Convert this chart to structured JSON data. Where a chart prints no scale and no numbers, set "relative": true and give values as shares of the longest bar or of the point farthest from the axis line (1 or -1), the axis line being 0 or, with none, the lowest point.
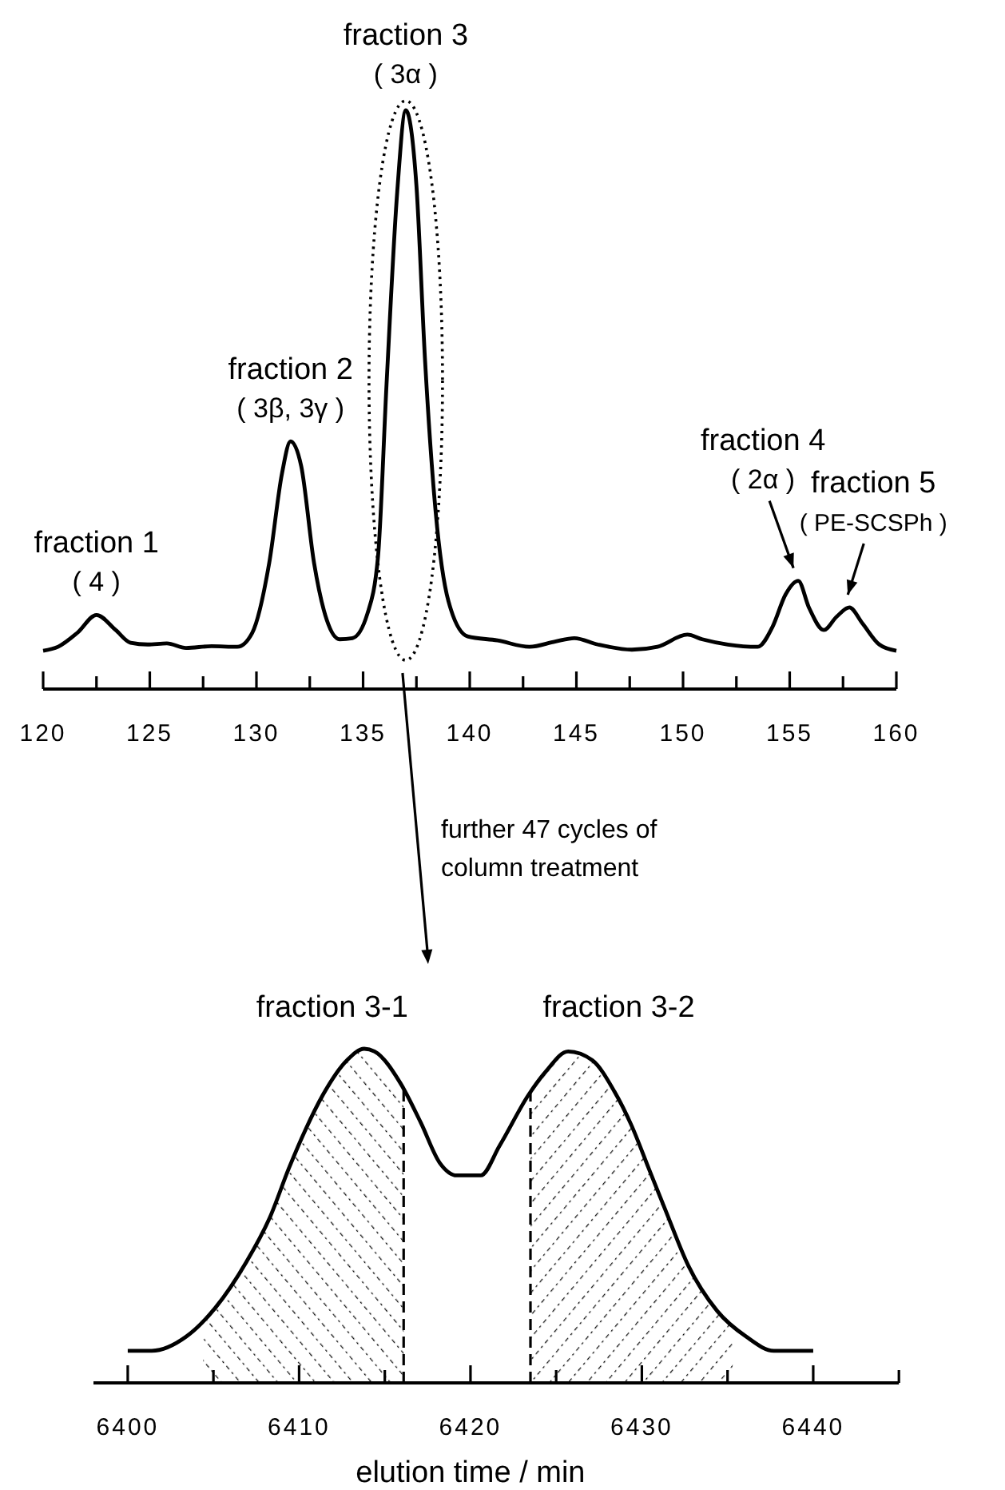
{
  "chart_data": [
    {
      "type": "line",
      "relative": true,
      "xlim": [
        120,
        160
      ],
      "xticks": [
        120,
        {
          "value": 122.5,
          "label": null
        },
        125,
        {
          "value": 127.5,
          "label": null
        },
        130,
        {
          "value": 132.5,
          "label": null
        },
        135,
        {
          "value": 137.5,
          "label": null
        },
        140,
        {
          "value": 142.5,
          "label": null
        },
        145,
        {
          "value": 147.5,
          "label": null
        },
        150,
        {
          "value": 152.5,
          "label": null
        },
        155,
        {
          "value": 157.5,
          "label": null
        },
        160
      ],
      "series": [
        {
          "color": "#000000",
          "x": [
            120,
            120.7,
            121.6,
            122.5,
            123.4,
            124.1,
            124.9,
            125.8,
            126.7,
            127.9,
            129.1,
            129.8,
            130.6,
            131.2,
            131.6,
            132.1,
            132.7,
            133.3,
            133.9,
            134.5,
            135.2,
            135.7,
            136.1,
            136.6,
            137.0,
            137.5,
            137.9,
            138.4,
            139.0,
            139.9,
            141.3,
            142.8,
            144.0,
            144.9,
            146.0,
            147.6,
            148.8,
            150.2,
            150.9,
            152.1,
            153.5,
            154.2,
            154.8,
            155.4,
            155.9,
            156.6,
            157.2,
            157.8,
            158.4,
            159.2,
            160
          ],
          "values": [
            0.066,
            0.073,
            0.097,
            0.128,
            0.102,
            0.08,
            0.077,
            0.079,
            0.071,
            0.074,
            0.073,
            0.097,
            0.218,
            0.373,
            0.428,
            0.385,
            0.218,
            0.119,
            0.086,
            0.088,
            0.13,
            0.229,
            0.527,
            0.859,
            1,
            0.87,
            0.571,
            0.307,
            0.152,
            0.091,
            0.084,
            0.073,
            0.082,
            0.088,
            0.077,
            0.068,
            0.073,
            0.094,
            0.086,
            0.077,
            0.073,
            0.108,
            0.163,
            0.187,
            0.141,
            0.102,
            0.125,
            0.141,
            0.114,
            0.077,
            0.066
          ]
        }
      ],
      "annotations": [
        {
          "text": "fraction 1\n( 4 )",
          "x": 122.5,
          "y": 0.128
        },
        {
          "text": "fraction 2\n( 3β, 3γ )",
          "x": 131.6,
          "y": 0.428
        },
        {
          "text": "fraction 3\n( 3α )",
          "x": 137,
          "y": 1
        },
        {
          "text": "fraction 4\n( 2α )",
          "x": 155.4,
          "y": 0.187
        },
        {
          "text": "fraction 5\n( PE-SCSPh )",
          "x": 157.8,
          "y": 0.141
        }
      ]
    },
    {
      "type": "line",
      "relative": true,
      "xlim": [
        6398,
        6445
      ],
      "xlabel": "elution time / min",
      "xticks": [
        6400,
        {
          "value": 6405,
          "label": null
        },
        6410,
        {
          "value": 6415,
          "label": null
        },
        6420,
        {
          "value": 6425,
          "label": null
        },
        6430,
        {
          "value": 6435,
          "label": null
        },
        6440,
        {
          "value": 6445,
          "label": null
        }
      ],
      "series": [
        {
          "color": "#000000",
          "x": [
            6400,
            6401.4,
            6403.4,
            6405.1,
            6406.9,
            6408.3,
            6409.4,
            6410.4,
            6411.4,
            6412.8,
            6413.8,
            6414.4,
            6415.9,
            6417.1,
            6418.2,
            6419.2,
            6420.6,
            6421.7,
            6423.4,
            6424.4,
            6425.7,
            6427.1,
            6428.4,
            6429.4,
            6430.4,
            6431.4,
            6432.7,
            6434.4,
            6436.1,
            6437.7,
            6440
          ],
          "values": [
            0.096,
            0.096,
            0.138,
            0.224,
            0.36,
            0.496,
            0.642,
            0.761,
            0.863,
            0.966,
            1,
            0.992,
            0.898,
            0.779,
            0.659,
            0.621,
            0.621,
            0.71,
            0.863,
            0.932,
            0.992,
            0.966,
            0.872,
            0.77,
            0.642,
            0.514,
            0.352,
            0.215,
            0.138,
            0.096,
            0.096
          ]
        }
      ],
      "bands": [
        {
          "axis": "x",
          "from": 6404.4,
          "to": 6416.1,
          "label": "fraction 3-1"
        },
        {
          "axis": "x",
          "from": 6423.5,
          "to": 6435.3,
          "label": "fraction 3-2"
        }
      ],
      "ref_lines": [
        {
          "axis": "x",
          "value": 6416.1,
          "line_style": "dashed"
        },
        {
          "axis": "x",
          "value": 6423.5,
          "line_style": "dashed"
        }
      ],
      "annotations": [
        "further 47 cycles of\ncolumn treatment"
      ]
    }
  ]
}
